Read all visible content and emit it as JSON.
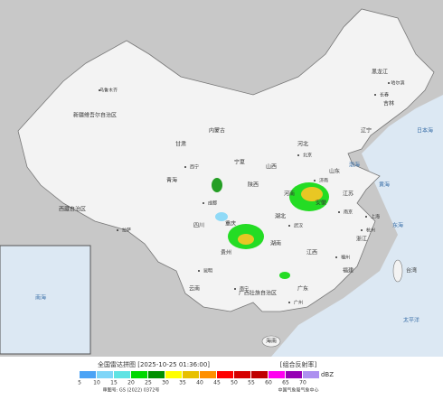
{
  "title": "全国雷达拼图 [2025-10-25 01:36:00]",
  "product": "[组合反射率]",
  "unit": "dBZ",
  "approval": "审图号: GS (2022) 0372号",
  "agency": "中国气象局气象中心",
  "legend": [
    {
      "value": 5,
      "color": "#4ba3f5"
    },
    {
      "value": 10,
      "color": "#7fd6f8"
    },
    {
      "value": 15,
      "color": "#5fe3e3"
    },
    {
      "value": 20,
      "color": "#00d800"
    },
    {
      "value": 25,
      "color": "#009000"
    },
    {
      "value": 30,
      "color": "#ffff00"
    },
    {
      "value": 35,
      "color": "#e7c000"
    },
    {
      "value": 40,
      "color": "#ff9000"
    },
    {
      "value": 45,
      "color": "#ff0000"
    },
    {
      "value": 50,
      "color": "#d60000"
    },
    {
      "value": 55,
      "color": "#c00000"
    },
    {
      "value": 60,
      "color": "#ff00f0"
    },
    {
      "value": 65,
      "color": "#9600b4"
    },
    {
      "value": 70,
      "color": "#ad90f0"
    }
  ],
  "regions": [
    "新疆维吾尔自治区",
    "西藏自治区",
    "青海",
    "甘肃",
    "内蒙古",
    "黑龙江",
    "吉林",
    "辽宁",
    "河北",
    "山东",
    "河南",
    "湖北",
    "湖南",
    "四川",
    "重庆",
    "贵州",
    "云南",
    "广西壮族自治区",
    "广东",
    "江西",
    "安徽",
    "江苏",
    "浙江",
    "福建",
    "台湾",
    "海南",
    "陕西",
    "山西",
    "宁夏"
  ],
  "seas": [
    "渤海",
    "黄海",
    "东海",
    "南海",
    "太平洋",
    "日本海"
  ],
  "cities": [
    "乌鲁木齐",
    "拉萨",
    "北京",
    "哈尔滨",
    "长春",
    "济南",
    "南京",
    "上海",
    "武汉",
    "成都",
    "昆明",
    "南宁",
    "广州",
    "福州",
    "杭州",
    "西宁"
  ]
}
